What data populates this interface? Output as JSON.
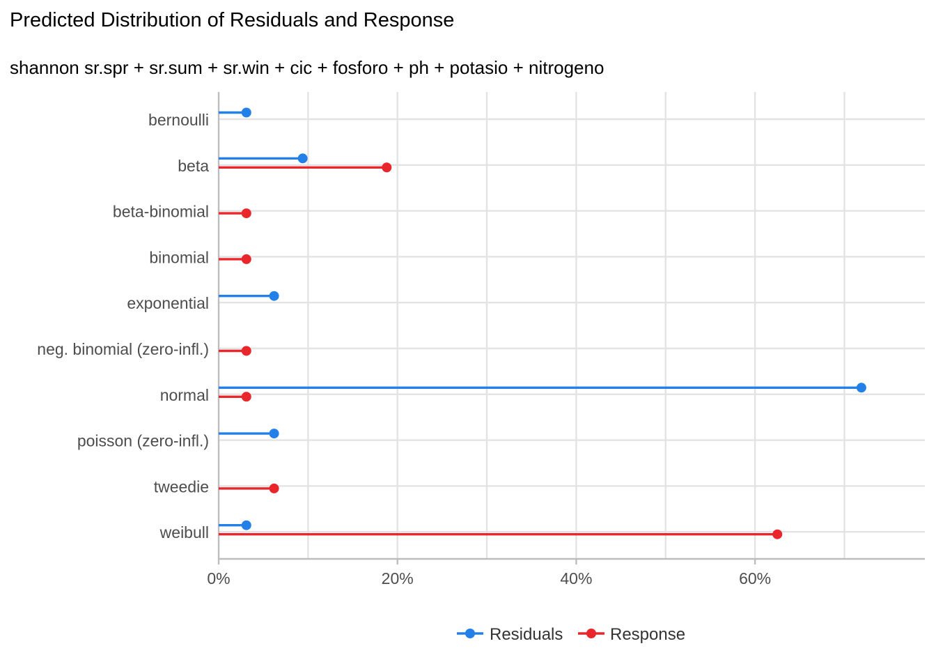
{
  "chart_data": {
    "type": "lollipop",
    "title": "Predicted Distribution of Residuals and Response",
    "subtitle": "shannon sr.spr + sr.sum + sr.win + cic + fosforo + ph + potasio + nitrogeno",
    "categories": [
      "bernoulli",
      "beta",
      "beta-binomial",
      "binomial",
      "exponential",
      "neg. binomial (zero-infl.)",
      "normal",
      "poisson (zero-infl.)",
      "tweedie",
      "weibull"
    ],
    "series": [
      {
        "name": "Residuals",
        "color": "#2280e8",
        "values": [
          3.1,
          9.4,
          null,
          null,
          6.2,
          null,
          71.9,
          6.2,
          null,
          3.1
        ]
      },
      {
        "name": "Response",
        "color": "#e8262b",
        "values": [
          null,
          18.8,
          3.1,
          3.1,
          null,
          3.1,
          3.1,
          null,
          6.2,
          62.5
        ]
      }
    ],
    "x_ticks": [
      "0%",
      "20%",
      "40%",
      "60%"
    ],
    "x_tick_values": [
      0,
      20,
      40,
      60
    ],
    "xlim": [
      0,
      79
    ],
    "xlabel": "",
    "ylabel": "",
    "grid": true,
    "legend_position": "bottom"
  }
}
